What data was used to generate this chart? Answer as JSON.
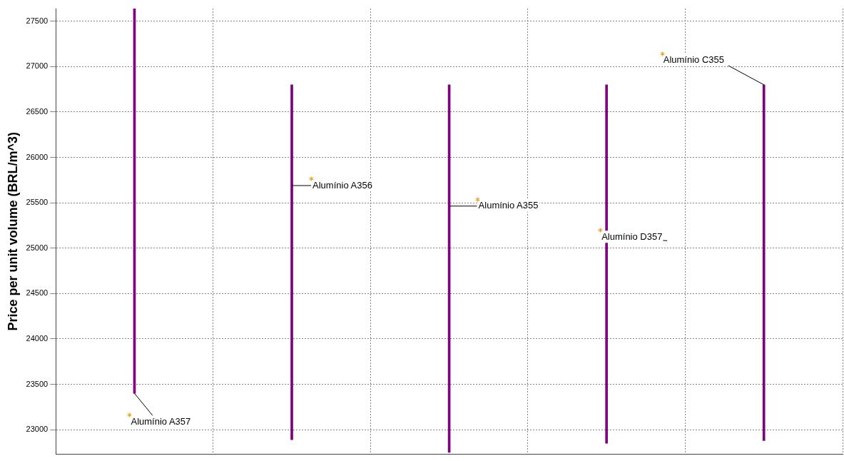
{
  "chart_data": {
    "type": "bar",
    "ylabel": "Price per unit volume (BRL/m^3)",
    "categories": [
      null,
      null,
      null,
      null,
      null
    ],
    "base": [
      23400,
      22890,
      22750,
      22850,
      22880
    ],
    "values": [
      4240,
      3910,
      4050,
      3950,
      3920
    ],
    "color": "#800080",
    "annotations": [
      "Alumínio A357",
      "Alumínio A356",
      "Alumínio A355",
      "Alumínio D357",
      "Alumínio C355"
    ],
    "ylim": [
      22730,
      27640
    ],
    "yticks": [
      23000,
      23500,
      24000,
      24500,
      25000,
      25500,
      26000,
      26500,
      27000,
      27500
    ],
    "grid": true,
    "tick_labels": "y"
  }
}
